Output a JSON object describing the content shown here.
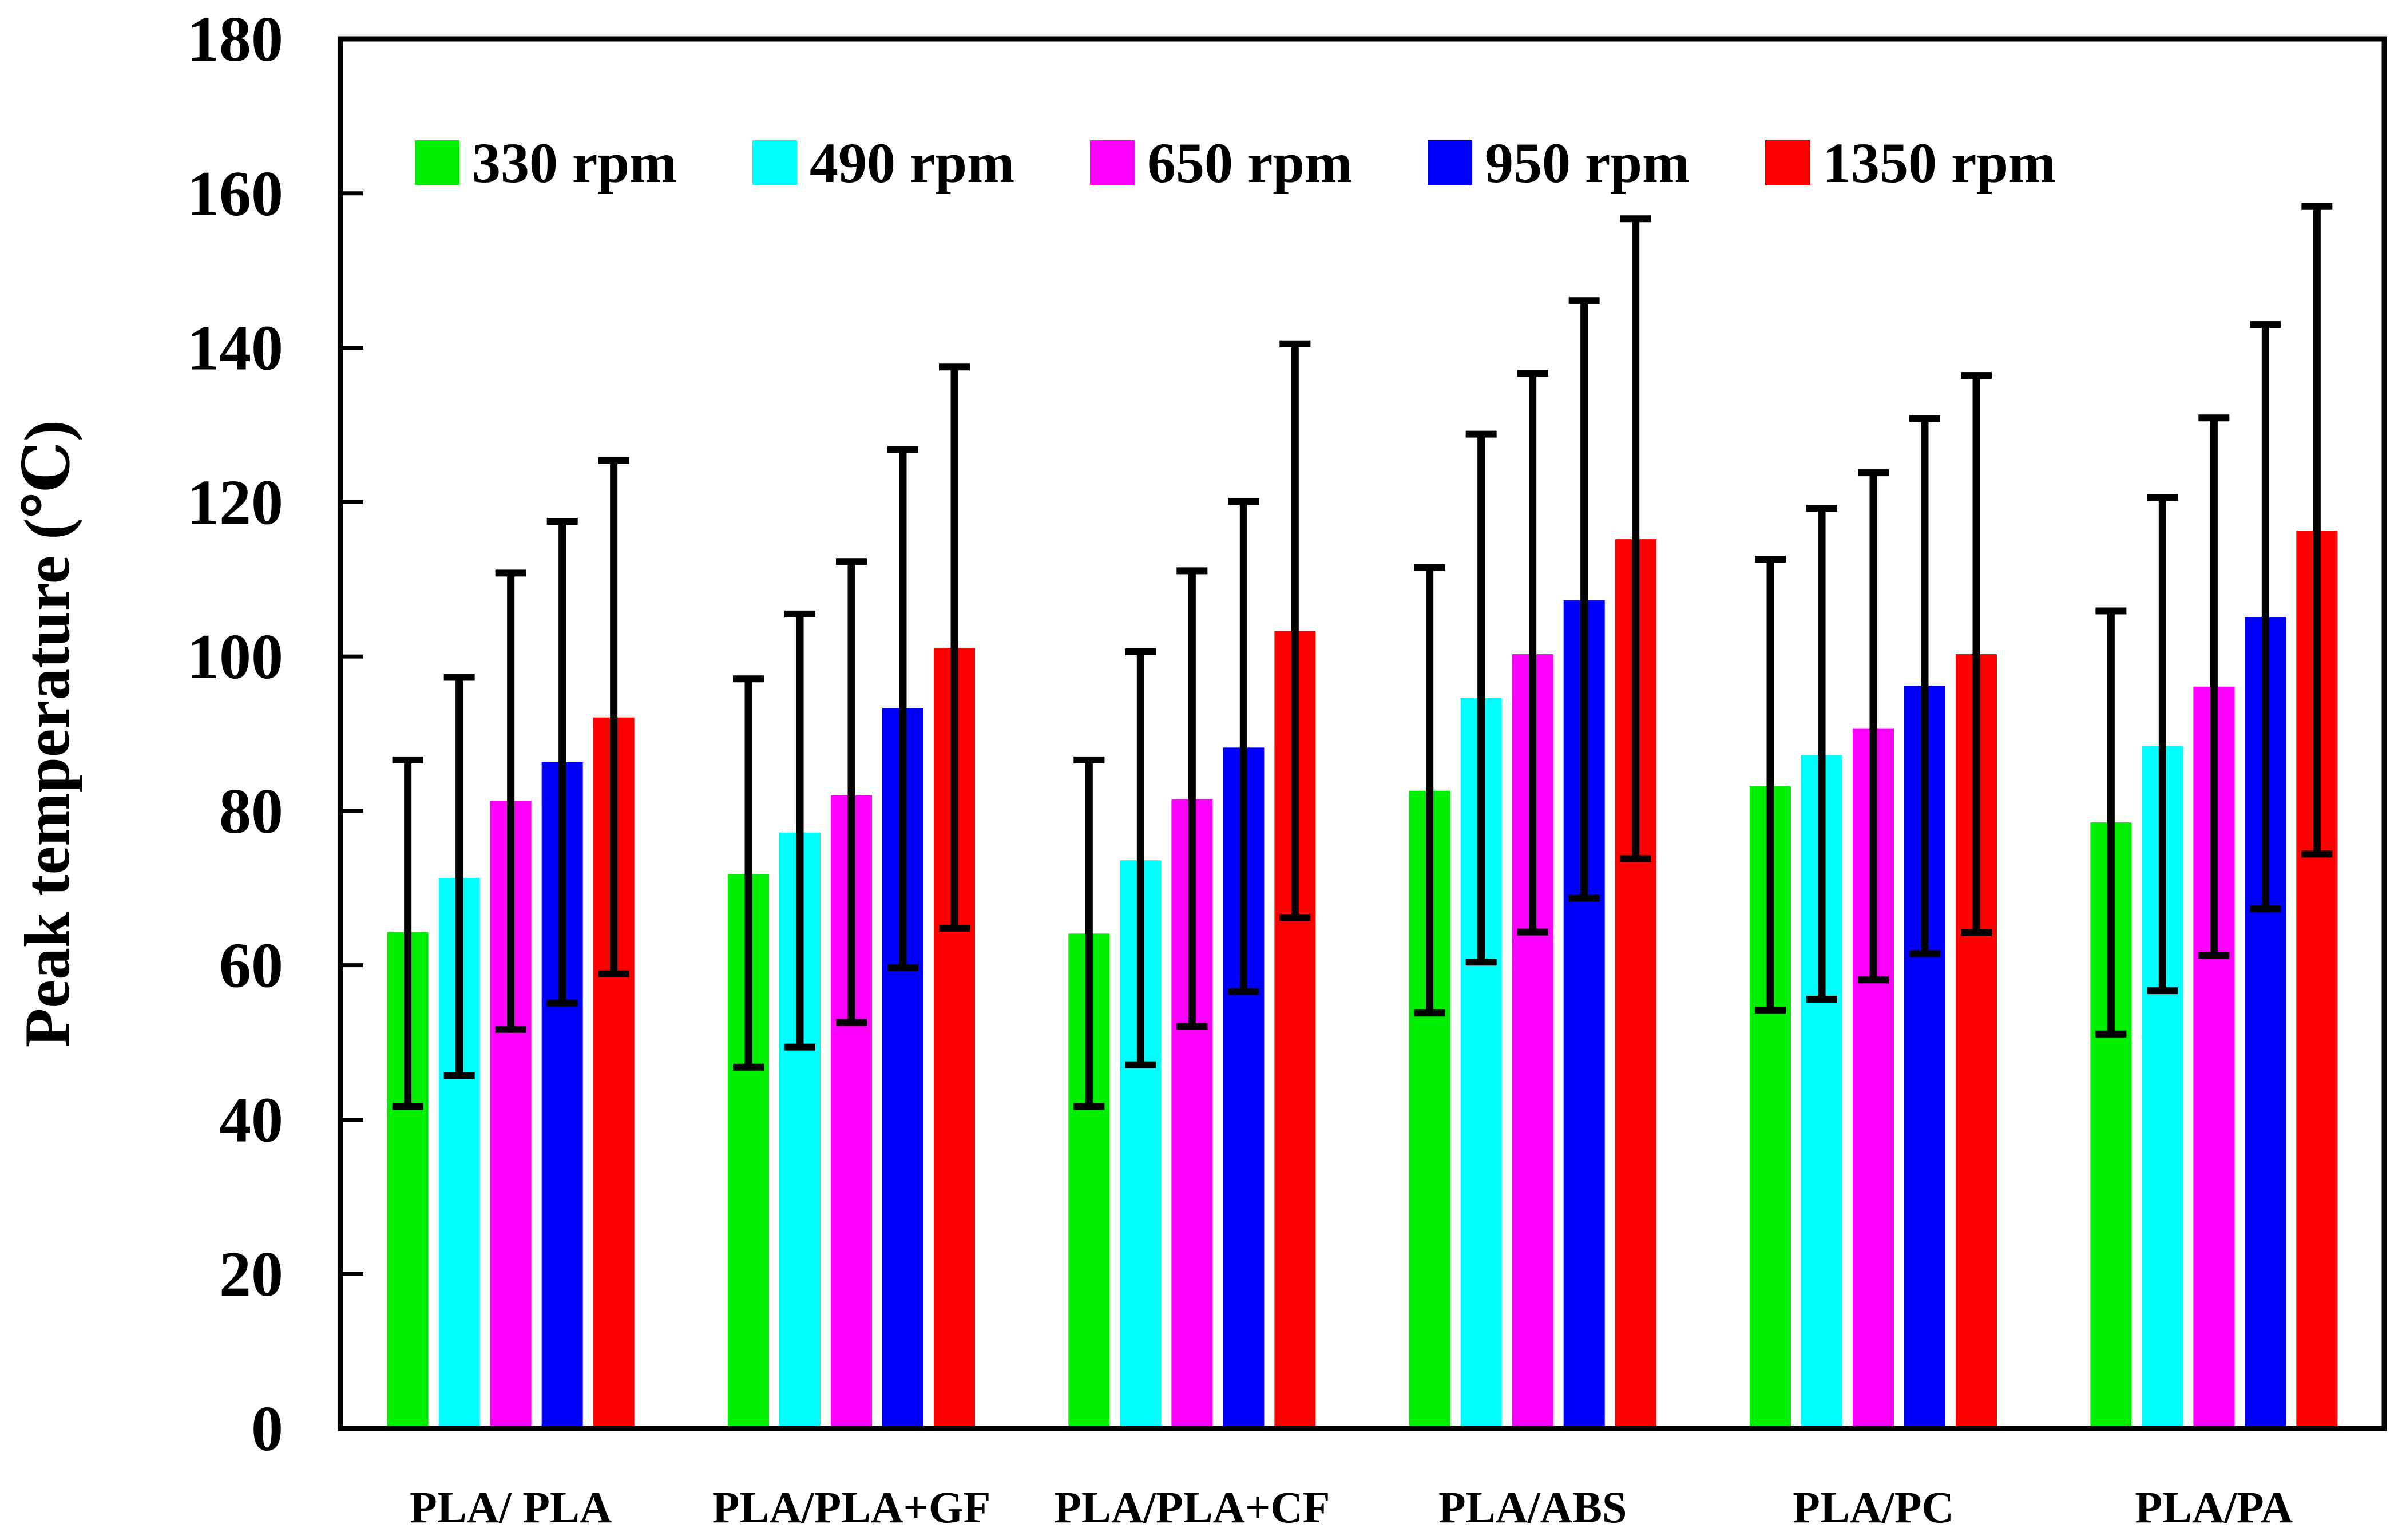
{
  "chart_data": {
    "type": "bar",
    "title": "",
    "xlabel": "",
    "ylabel": "Peak temperature (℃)",
    "ylim": [
      0,
      180
    ],
    "yticks": [
      "0",
      "20",
      "40",
      "60",
      "80",
      "100",
      "120",
      "140",
      "160",
      "180"
    ],
    "grid": false,
    "legend_position": "top-left",
    "error_bars": true,
    "categories": [
      "PLA/ PLA",
      "PLA/PLA+GF",
      "PLA/PLA+CF",
      "PLA/ABS",
      "PLA/PC",
      "PLA/PA"
    ],
    "series": [
      {
        "name": "330 rpm",
        "color": "#00ee00",
        "values": [
          64.3,
          71.8,
          64.1,
          82.6,
          83.2,
          78.5
        ],
        "error_low": [
          41.7,
          46.8,
          41.7,
          53.8,
          54.2,
          51.1
        ],
        "error_high": [
          86.6,
          97.1,
          86.6,
          111.5,
          112.6,
          105.9
        ]
      },
      {
        "name": "490 rpm",
        "color": "#00ffff",
        "values": [
          71.3,
          77.2,
          73.6,
          94.6,
          87.2,
          88.4
        ],
        "error_low": [
          45.7,
          49.4,
          47.1,
          60.4,
          55.6,
          56.7
        ],
        "error_high": [
          97.3,
          105.5,
          100.6,
          128.8,
          119.2,
          120.6
        ]
      },
      {
        "name": "650 rpm",
        "color": "#ff00ff",
        "values": [
          81.3,
          82.0,
          81.5,
          100.3,
          90.7,
          96.1
        ],
        "error_low": [
          51.7,
          52.6,
          52.1,
          64.3,
          58.1,
          61.3
        ],
        "error_high": [
          110.8,
          112.3,
          111.1,
          136.7,
          123.8,
          130.9
        ]
      },
      {
        "name": "950 rpm",
        "color": "#0000ff",
        "values": [
          86.3,
          93.3,
          88.2,
          107.3,
          96.2,
          105.1
        ],
        "error_low": [
          55.1,
          59.7,
          56.6,
          68.7,
          61.5,
          67.3
        ],
        "error_high": [
          117.5,
          126.8,
          120.1,
          146.1,
          130.8,
          143.0
        ]
      },
      {
        "name": "1350 rpm",
        "color": "#ff0000",
        "values": [
          92.1,
          101.1,
          103.3,
          115.2,
          100.3,
          116.3
        ],
        "error_low": [
          58.9,
          64.8,
          66.2,
          73.8,
          64.2,
          74.4
        ],
        "error_high": [
          125.4,
          137.5,
          140.5,
          156.7,
          136.4,
          158.3
        ]
      }
    ]
  }
}
